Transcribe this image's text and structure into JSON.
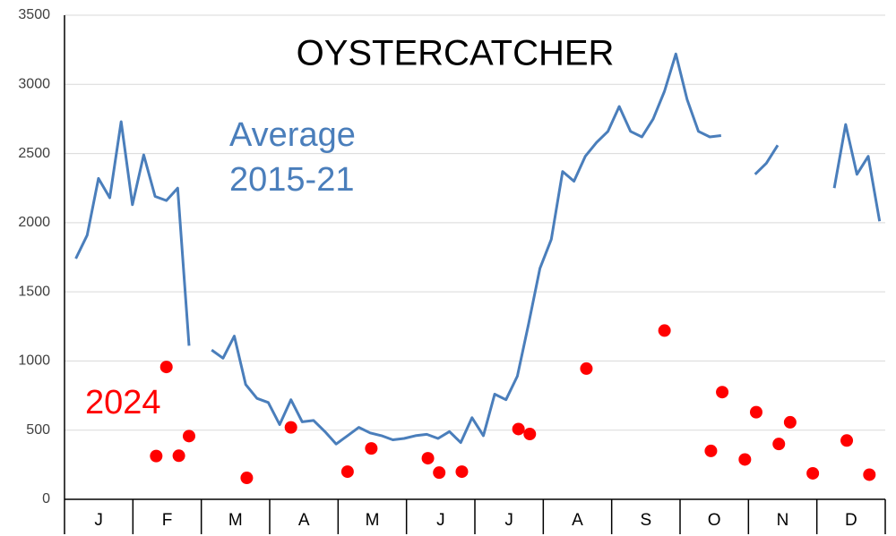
{
  "chart_data": {
    "type": "line",
    "title": "OYSTERCATCHER",
    "annotations": [
      {
        "lines": [
          "Average",
          "2015-21"
        ],
        "color": "#4a7ebb"
      },
      {
        "lines": [
          "2024"
        ],
        "color": "#ff0000"
      }
    ],
    "categories": [
      "J",
      "F",
      "M",
      "A",
      "M",
      "J",
      "J",
      "A",
      "S",
      "O",
      "N",
      "D"
    ],
    "xlim": [
      0,
      72.5
    ],
    "ylim": [
      0,
      3500
    ],
    "yticks": [
      0,
      500,
      1000,
      1500,
      2000,
      2500,
      3000,
      3500
    ],
    "grid": true,
    "series": [
      {
        "type": "line",
        "color": "#4a7ebb",
        "x": [
          1,
          2,
          3,
          4,
          5,
          6,
          7,
          8,
          9,
          10,
          11,
          12,
          13,
          14,
          15,
          16,
          17,
          18,
          19,
          20,
          21,
          22,
          23,
          24,
          25,
          26,
          27,
          28,
          29,
          30,
          31,
          32,
          33,
          34,
          35,
          36,
          37,
          38,
          39,
          40,
          41,
          42,
          43,
          44,
          45,
          46,
          47,
          48,
          49,
          50,
          51,
          52,
          53,
          54,
          55,
          56,
          57,
          58,
          59,
          60,
          61,
          62,
          63,
          64,
          65,
          66,
          67,
          68,
          69,
          70,
          71,
          72
        ],
        "values": [
          1740,
          1910,
          2320,
          2180,
          2730,
          2130,
          2490,
          2190,
          2160,
          2250,
          1110,
          null,
          1080,
          1020,
          1180,
          830,
          730,
          700,
          540,
          720,
          560,
          570,
          490,
          400,
          460,
          520,
          480,
          460,
          430,
          440,
          460,
          470,
          440,
          490,
          410,
          590,
          460,
          760,
          720,
          890,
          1270,
          1670,
          1880,
          2370,
          2300,
          2480,
          2580,
          2660,
          2840,
          2660,
          2620,
          2750,
          2950,
          3220,
          2890,
          2660,
          2620,
          2630,
          null,
          null,
          2350,
          2430,
          2560,
          null,
          null,
          null,
          null,
          2250,
          2710,
          2350,
          2480,
          2010
        ]
      },
      {
        "type": "scatter",
        "color": "#ff0000",
        "x": [
          8.1,
          9,
          10.1,
          11,
          16.1,
          20,
          25,
          27.1,
          32.1,
          33.1,
          35.1,
          40.1,
          41.1,
          46.1,
          53,
          57.1,
          58.1,
          60.1,
          61.1,
          63.1,
          64.1,
          66.1,
          69.1,
          71.1
        ],
        "values": [
          313,
          957,
          315,
          457,
          155,
          520,
          200,
          368,
          297,
          193,
          200,
          508,
          472,
          945,
          1220,
          350,
          775,
          288,
          630,
          400,
          557,
          188,
          425,
          178
        ]
      }
    ]
  }
}
